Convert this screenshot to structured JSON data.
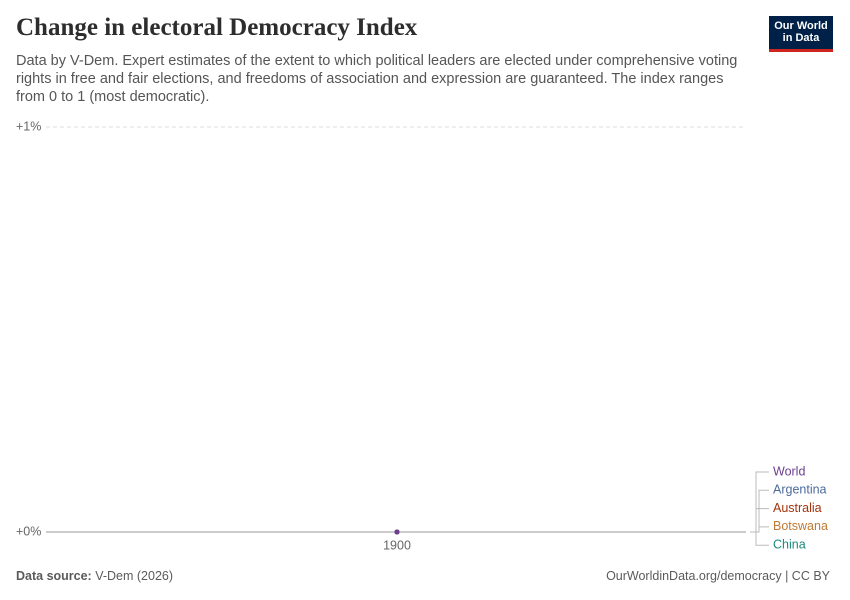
{
  "header": {
    "title": "Change in electoral Democracy Index",
    "subtitle": "Data by V-Dem. Expert estimates of the extent to which political leaders are elected under comprehensive voting rights in free and fair elections, and freedoms of association and expression are guaranteed. The index ranges from 0 to 1 (most democratic).",
    "logo": [
      "Our World",
      "in Data"
    ]
  },
  "chart_data": {
    "type": "scatter",
    "x": [
      1900
    ],
    "xticks": [
      1900
    ],
    "ylim": [
      0,
      1
    ],
    "yticks": [
      {
        "value": 0,
        "label": "+0%"
      },
      {
        "value": 1,
        "label": "+1%"
      }
    ],
    "grid": true,
    "series": [
      {
        "name": "China",
        "color": "#1a8a7a",
        "values": [
          0
        ]
      },
      {
        "name": "Botswana",
        "color": "#bf7a35",
        "values": [
          0
        ]
      },
      {
        "name": "Australia",
        "color": "#a2330b",
        "values": [
          0
        ]
      },
      {
        "name": "Argentina",
        "color": "#4c6a9c",
        "values": [
          0
        ]
      },
      {
        "name": "World",
        "color": "#6d3e91",
        "values": [
          0
        ]
      }
    ]
  },
  "footer": {
    "source_label": "Data source:",
    "source": "V-Dem (2026)",
    "credit": "OurWorldinData.org/democracy | CC BY"
  }
}
